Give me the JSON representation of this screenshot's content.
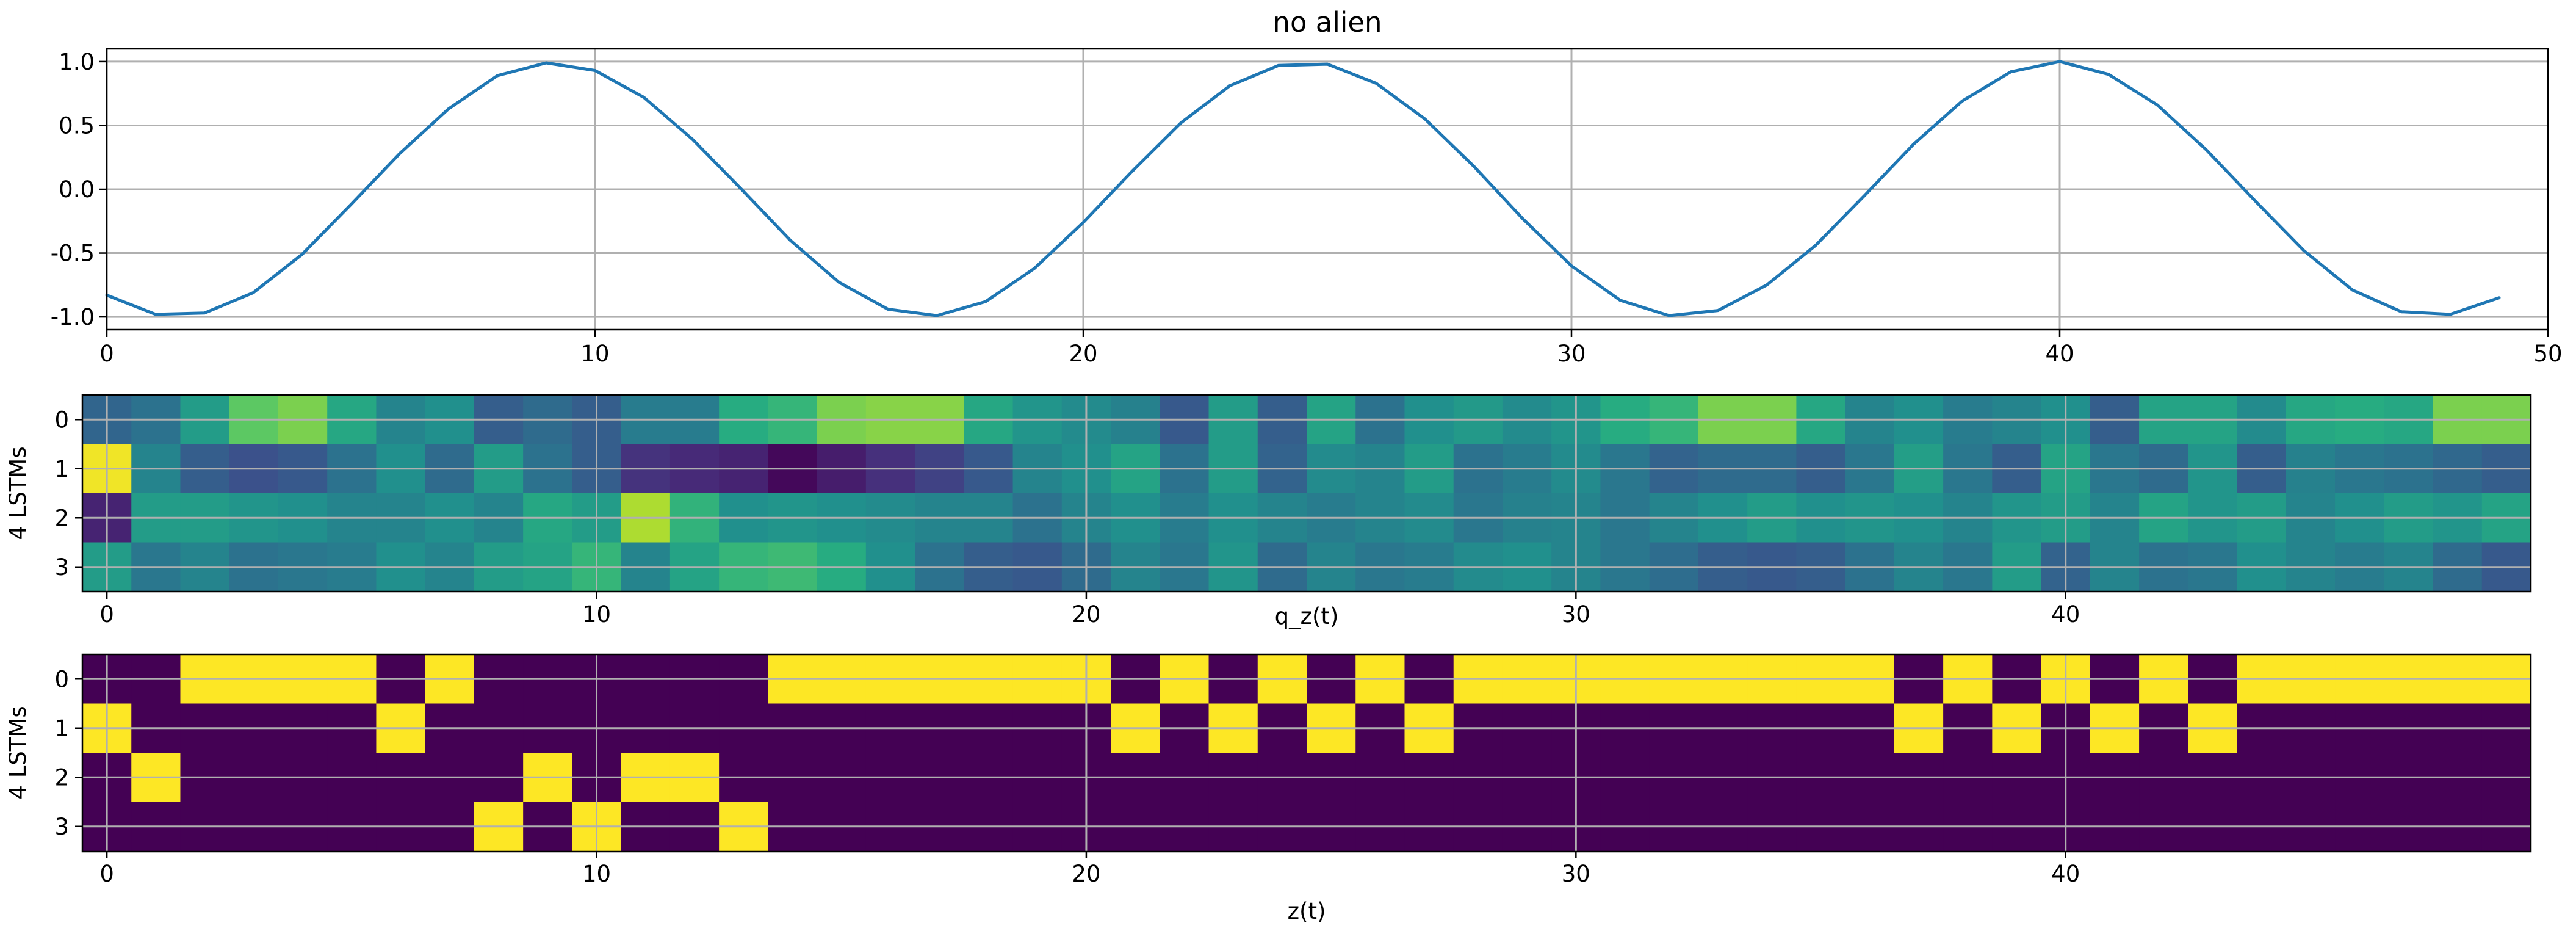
{
  "chart_data": [
    {
      "type": "line",
      "title": "no alien",
      "xlabel": "",
      "ylabel": "",
      "xlim": [
        0,
        50
      ],
      "ylim": [
        -1.1,
        1.1
      ],
      "xticks": [
        0,
        10,
        20,
        30,
        40,
        50
      ],
      "yticks": [
        1.0,
        0.5,
        0.0,
        -0.5,
        -1.0
      ],
      "ytick_labels": [
        "1.0",
        "0.5",
        "0.0",
        "-0.5",
        "-1.0"
      ],
      "grid": true,
      "color": "#1f77b4",
      "series": [
        {
          "x": [
            0,
            1,
            2,
            3,
            4,
            5,
            6,
            7,
            8,
            9,
            10,
            11,
            12,
            13,
            14,
            15,
            16,
            17,
            18,
            19,
            20,
            21,
            22,
            23,
            24,
            25,
            26,
            27,
            28,
            29,
            30,
            31,
            32,
            33,
            34,
            35,
            36,
            37,
            38,
            39,
            40,
            41,
            42,
            43,
            44,
            45,
            46,
            47,
            48,
            49
          ],
          "values": [
            -0.83,
            -0.98,
            -0.97,
            -0.81,
            -0.51,
            -0.12,
            0.28,
            0.63,
            0.89,
            0.99,
            0.93,
            0.72,
            0.39,
            0.0,
            -0.4,
            -0.73,
            -0.94,
            -0.99,
            -0.88,
            -0.62,
            -0.26,
            0.14,
            0.52,
            0.81,
            0.97,
            0.98,
            0.83,
            0.55,
            0.18,
            -0.23,
            -0.6,
            -0.87,
            -0.99,
            -0.95,
            -0.75,
            -0.44,
            -0.05,
            0.35,
            0.69,
            0.92,
            1.0,
            0.9,
            0.66,
            0.31,
            -0.09,
            -0.48,
            -0.79,
            -0.96,
            -0.98,
            -0.85
          ]
        }
      ]
    },
    {
      "type": "heatmap",
      "title": "",
      "xlabel": "q_z(t)",
      "ylabel": "4 LSTMs",
      "colormap": "viridis",
      "xticks": [
        0,
        10,
        20,
        30,
        40
      ],
      "yticks": [
        0,
        1,
        2,
        3
      ],
      "grid": true,
      "matrix": [
        [
          0.33,
          0.38,
          0.55,
          0.75,
          0.8,
          0.6,
          0.45,
          0.5,
          0.3,
          0.35,
          0.3,
          0.42,
          0.42,
          0.62,
          0.66,
          0.8,
          0.82,
          0.82,
          0.6,
          0.52,
          0.48,
          0.44,
          0.28,
          0.55,
          0.3,
          0.58,
          0.38,
          0.5,
          0.54,
          0.48,
          0.52,
          0.62,
          0.66,
          0.8,
          0.8,
          0.6,
          0.45,
          0.5,
          0.42,
          0.45,
          0.5,
          0.3,
          0.58,
          0.58,
          0.48,
          0.6,
          0.62,
          0.6,
          0.8,
          0.8
        ],
        [
          0.98,
          0.45,
          0.3,
          0.25,
          0.28,
          0.38,
          0.5,
          0.35,
          0.55,
          0.38,
          0.3,
          0.15,
          0.12,
          0.1,
          0.02,
          0.08,
          0.14,
          0.2,
          0.28,
          0.45,
          0.5,
          0.58,
          0.38,
          0.55,
          0.32,
          0.48,
          0.45,
          0.55,
          0.38,
          0.42,
          0.48,
          0.4,
          0.32,
          0.35,
          0.35,
          0.3,
          0.4,
          0.56,
          0.4,
          0.3,
          0.58,
          0.4,
          0.35,
          0.52,
          0.3,
          0.44,
          0.4,
          0.38,
          0.34,
          0.3
        ],
        [
          0.1,
          0.55,
          0.55,
          0.52,
          0.5,
          0.45,
          0.45,
          0.5,
          0.45,
          0.6,
          0.55,
          0.88,
          0.65,
          0.5,
          0.52,
          0.5,
          0.48,
          0.45,
          0.45,
          0.38,
          0.45,
          0.5,
          0.42,
          0.5,
          0.45,
          0.42,
          0.45,
          0.48,
          0.4,
          0.44,
          0.45,
          0.4,
          0.45,
          0.5,
          0.55,
          0.5,
          0.52,
          0.5,
          0.45,
          0.52,
          0.55,
          0.45,
          0.58,
          0.52,
          0.55,
          0.45,
          0.5,
          0.55,
          0.52,
          0.58
        ],
        [
          0.55,
          0.4,
          0.45,
          0.38,
          0.4,
          0.42,
          0.5,
          0.45,
          0.55,
          0.58,
          0.66,
          0.45,
          0.58,
          0.66,
          0.68,
          0.62,
          0.5,
          0.38,
          0.3,
          0.28,
          0.35,
          0.45,
          0.4,
          0.52,
          0.35,
          0.45,
          0.4,
          0.42,
          0.48,
          0.5,
          0.45,
          0.4,
          0.36,
          0.3,
          0.28,
          0.3,
          0.38,
          0.45,
          0.4,
          0.55,
          0.32,
          0.45,
          0.38,
          0.4,
          0.5,
          0.45,
          0.42,
          0.45,
          0.35,
          0.28
        ]
      ]
    },
    {
      "type": "heatmap",
      "title": "",
      "xlabel": "z(t)",
      "ylabel": "4 LSTMs",
      "colormap": "viridis",
      "xticks": [
        0,
        10,
        20,
        30,
        40
      ],
      "yticks": [
        0,
        1,
        2,
        3
      ],
      "grid": true,
      "argmax": [
        1,
        2,
        0,
        0,
        0,
        0,
        1,
        0,
        3,
        2,
        3,
        2,
        2,
        3,
        0,
        0,
        0,
        0,
        0,
        0,
        0,
        1,
        0,
        1,
        0,
        1,
        0,
        1,
        0,
        0,
        0,
        0,
        0,
        0,
        0,
        0,
        0,
        1,
        0,
        1,
        0,
        1,
        0,
        1,
        0,
        0,
        0,
        0,
        0,
        0
      ]
    }
  ]
}
